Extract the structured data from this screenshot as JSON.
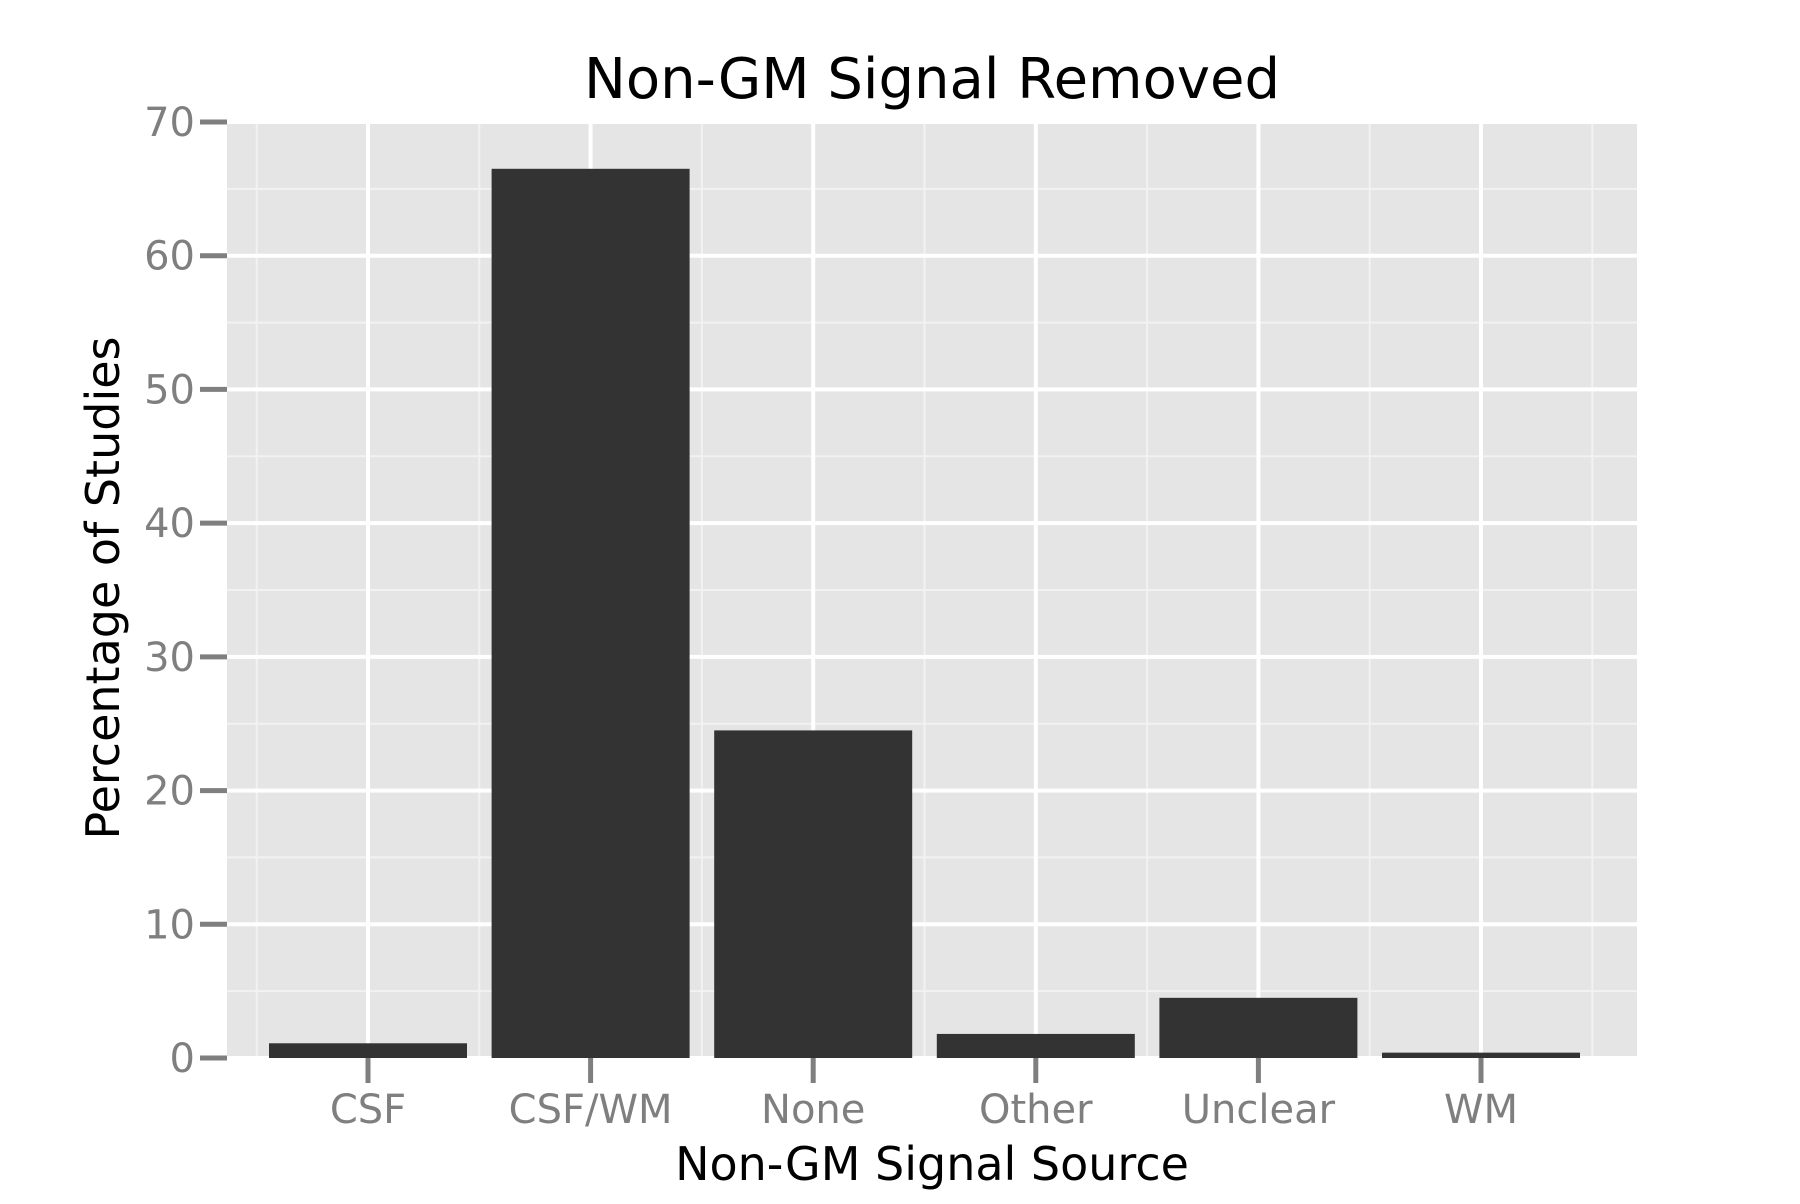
{
  "chart_data": {
    "type": "bar",
    "title": "Non-GM Signal Removed",
    "xlabel": "Non-GM Signal Source",
    "ylabel": "Percentage of Studies",
    "categories": [
      "CSF",
      "CSF/WM",
      "None",
      "Other",
      "Unclear",
      "WM"
    ],
    "values": [
      1.1,
      66.5,
      24.5,
      1.8,
      4.5,
      0.4
    ],
    "ylim": [
      0,
      70
    ],
    "yticks": [
      0,
      10,
      20,
      30,
      40,
      50,
      60,
      70
    ],
    "grid": true,
    "legend": "none"
  },
  "colors": {
    "panel_background": "#e5e5e5",
    "grid_major": "#ffffff",
    "grid_minor": "#f2f2f2",
    "bar_fill": "#333333",
    "tick_label": "#7f7f7f",
    "tick_mark": "#7f7f7f",
    "title_text": "#000000"
  }
}
